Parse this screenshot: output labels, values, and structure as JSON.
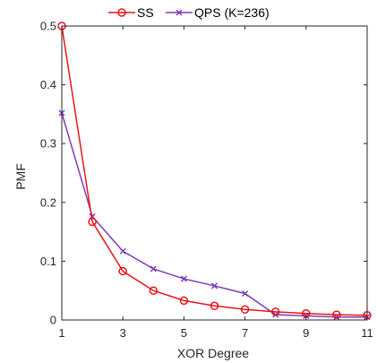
{
  "chart_data": {
    "type": "line",
    "xlabel": "XOR Degree",
    "ylabel": "PMF",
    "xlim": [
      1,
      11
    ],
    "ylim": [
      0,
      0.5
    ],
    "xticks": [
      "1",
      "3",
      "5",
      "7",
      "9",
      "11"
    ],
    "yticks": [
      "0",
      "0.1",
      "0.2",
      "0.3",
      "0.4",
      "0.5"
    ],
    "grid": false,
    "box": true,
    "legend_position": "top, outside, horizontal",
    "series": [
      {
        "name": "SS",
        "color": "#e8141b",
        "marker": "circle",
        "x": [
          1,
          2,
          3,
          4,
          5,
          6,
          7,
          8,
          9,
          10,
          11
        ],
        "y": [
          0.5,
          0.167,
          0.083,
          0.05,
          0.033,
          0.024,
          0.018,
          0.014,
          0.011,
          0.009,
          0.008
        ]
      },
      {
        "name": "QPS (K=236)",
        "color": "#7e3db8",
        "marker": "x",
        "x": [
          1,
          2,
          3,
          4,
          5,
          6,
          7,
          8,
          9,
          10,
          11
        ],
        "y": [
          0.352,
          0.176,
          0.117,
          0.087,
          0.07,
          0.058,
          0.045,
          0.009,
          0.007,
          0.005,
          0.005
        ]
      }
    ]
  }
}
